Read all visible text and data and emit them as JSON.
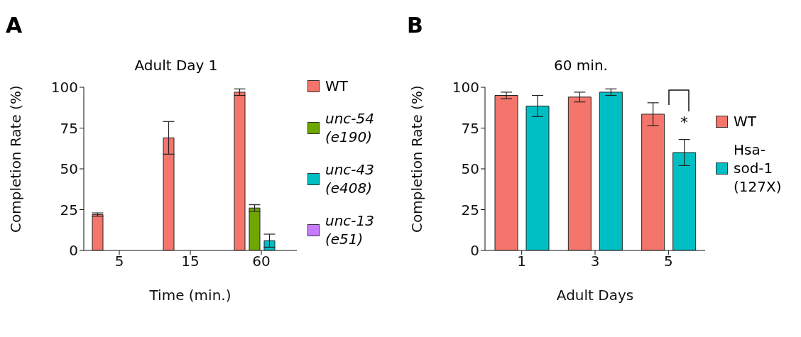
{
  "chart_data": [
    {
      "type": "bar",
      "title": "Adult Day 1",
      "xlabel": "Time (min.)",
      "ylabel": "Completion Rate (%)",
      "annotations": [
        "A"
      ],
      "categories": [
        "5",
        "15",
        "60"
      ],
      "series": [
        {
          "name": "WT",
          "color": "#f4756b",
          "values": [
            22,
            69,
            97
          ],
          "errors": [
            1,
            10,
            2
          ]
        },
        {
          "name": "unc-54 (e190)",
          "color": "#6fa600",
          "values": [
            0,
            0,
            26
          ],
          "errors": [
            null,
            null,
            2
          ]
        },
        {
          "name": "unc-43 (e408)",
          "color": "#00bfc4",
          "values": [
            0,
            0,
            6
          ],
          "errors": [
            null,
            null,
            4
          ]
        },
        {
          "name": "unc-13 (e51)",
          "color": "#c77cff",
          "values": [
            0,
            0,
            0
          ],
          "errors": [
            null,
            null,
            null
          ]
        }
      ],
      "ylim": [
        0,
        100
      ],
      "yticks": [
        0,
        25,
        50,
        75,
        100
      ],
      "grid": false,
      "legend": "right"
    },
    {
      "type": "bar",
      "title": "60 min.",
      "xlabel": "Adult Days",
      "ylabel": "Completion Rate (%)",
      "annotations": [
        "B",
        "*"
      ],
      "categories": [
        "1",
        "3",
        "5"
      ],
      "series": [
        {
          "name": "WT",
          "color": "#f4756b",
          "values": [
            95,
            94,
            83.5
          ],
          "errors": [
            2,
            3,
            7
          ]
        },
        {
          "name": "Hsa-sod-1 (127X)",
          "color": "#00bfc4",
          "values": [
            88.5,
            97,
            60
          ],
          "errors": [
            6.5,
            2,
            8
          ]
        }
      ],
      "ylim": [
        0,
        100
      ],
      "yticks": [
        0,
        25,
        50,
        75,
        100
      ],
      "grid": false,
      "legend": "right"
    }
  ]
}
